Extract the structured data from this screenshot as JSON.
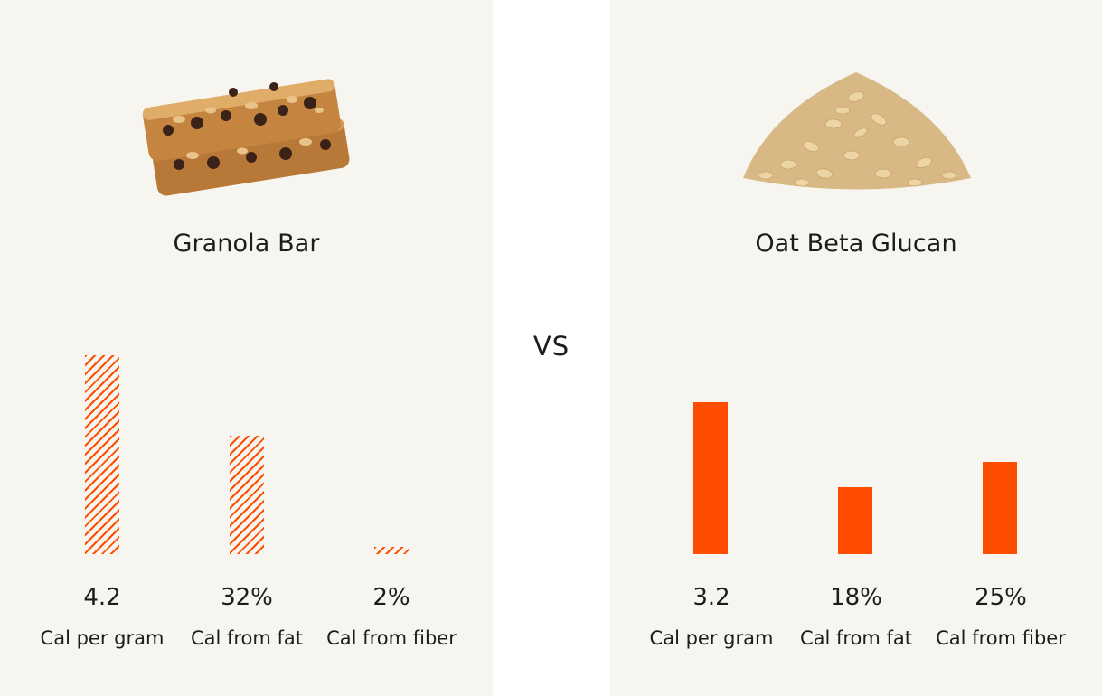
{
  "vs_label": "VS",
  "colors": {
    "accent": "#ff4d00",
    "panel_bg": "#f7f5f0"
  },
  "chart_data": [
    {
      "type": "bar",
      "title": "Granola Bar",
      "style": "hatched",
      "categories": [
        "Cal per gram",
        "Cal from fat",
        "Cal from fiber"
      ],
      "values": [
        4.2,
        32,
        2
      ],
      "value_labels": [
        "4.2",
        "32%",
        "2%"
      ]
    },
    {
      "type": "bar",
      "title": "Oat Beta Glucan",
      "style": "solid",
      "categories": [
        "Cal per gram",
        "Cal from fat",
        "Cal from fiber"
      ],
      "values": [
        3.2,
        18,
        25
      ],
      "value_labels": [
        "3.2",
        "18%",
        "25%"
      ]
    }
  ]
}
